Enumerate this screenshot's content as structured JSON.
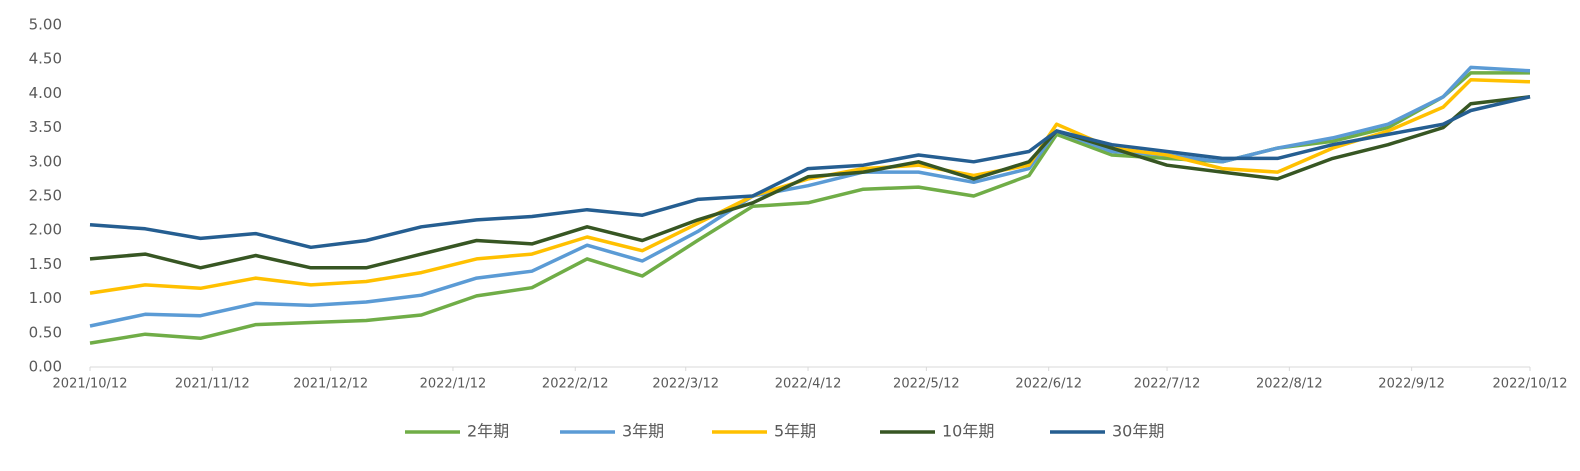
{
  "chart_data": {
    "type": "line",
    "x": [
      "2021/10/12",
      "2021/10/26",
      "2021/11/9",
      "2021/11/23",
      "2021/12/7",
      "2021/12/21",
      "2022/1/4",
      "2022/1/18",
      "2022/2/1",
      "2022/2/15",
      "2022/3/1",
      "2022/3/15",
      "2022/3/29",
      "2022/4/12",
      "2022/4/26",
      "2022/5/10",
      "2022/5/24",
      "2022/6/7",
      "2022/6/14",
      "2022/6/28",
      "2022/7/12",
      "2022/7/26",
      "2022/8/9",
      "2022/8/23",
      "2022/9/6",
      "2022/9/20",
      "2022/9/27",
      "2022/10/12"
    ],
    "series": [
      {
        "name": "2年期",
        "color": "#70ad47",
        "values": [
          0.35,
          0.48,
          0.42,
          0.62,
          0.65,
          0.68,
          0.76,
          1.04,
          1.16,
          1.58,
          1.33,
          1.85,
          2.35,
          2.4,
          2.6,
          2.63,
          2.5,
          2.8,
          3.4,
          3.1,
          3.05,
          3.0,
          3.2,
          3.3,
          3.5,
          3.95,
          4.3,
          4.3
        ]
      },
      {
        "name": "3年期",
        "color": "#5b9bd5",
        "values": [
          0.6,
          0.77,
          0.75,
          0.93,
          0.9,
          0.95,
          1.05,
          1.3,
          1.4,
          1.78,
          1.55,
          1.98,
          2.5,
          2.65,
          2.85,
          2.85,
          2.7,
          2.9,
          3.45,
          3.15,
          3.1,
          3.0,
          3.2,
          3.35,
          3.55,
          3.95,
          4.38,
          4.33
        ]
      },
      {
        "name": "5年期",
        "color": "#ffc000",
        "values": [
          1.08,
          1.2,
          1.15,
          1.3,
          1.2,
          1.25,
          1.38,
          1.58,
          1.65,
          1.9,
          1.7,
          2.1,
          2.5,
          2.75,
          2.9,
          2.95,
          2.8,
          2.95,
          3.55,
          3.2,
          3.1,
          2.9,
          2.85,
          3.2,
          3.45,
          3.8,
          4.2,
          4.17
        ]
      },
      {
        "name": "10年期",
        "color": "#375623",
        "values": [
          1.58,
          1.65,
          1.45,
          1.63,
          1.45,
          1.45,
          1.65,
          1.85,
          1.8,
          2.05,
          1.85,
          2.15,
          2.4,
          2.78,
          2.85,
          3.0,
          2.75,
          3.0,
          3.45,
          3.2,
          2.95,
          2.85,
          2.75,
          3.05,
          3.25,
          3.5,
          3.85,
          3.95
        ]
      },
      {
        "name": "30年期",
        "color": "#255e91",
        "values": [
          2.08,
          2.02,
          1.88,
          1.95,
          1.75,
          1.85,
          2.05,
          2.15,
          2.2,
          2.3,
          2.22,
          2.45,
          2.5,
          2.9,
          2.95,
          3.1,
          3.0,
          3.15,
          3.45,
          3.25,
          3.15,
          3.05,
          3.05,
          3.25,
          3.4,
          3.55,
          3.75,
          3.95
        ]
      }
    ],
    "xlim": [
      "2021/10/12",
      "2022/10/12"
    ],
    "xticks": [
      "2021/10/12",
      "2021/11/12",
      "2021/12/12",
      "2022/1/12",
      "2022/2/12",
      "2022/3/12",
      "2022/4/12",
      "2022/5/12",
      "2022/6/12",
      "2022/7/12",
      "2022/8/12",
      "2022/9/12",
      "2022/10/12"
    ],
    "ylim": [
      0,
      5
    ],
    "yticks": [
      {
        "value": 0,
        "label": "0.00"
      },
      {
        "value": 0.5,
        "label": "0.50"
      },
      {
        "value": 1,
        "label": "1.00"
      },
      {
        "value": 1.5,
        "label": "1.50"
      },
      {
        "value": 2,
        "label": "2.00"
      },
      {
        "value": 2.5,
        "label": "2.50"
      },
      {
        "value": 3,
        "label": "3.00"
      },
      {
        "value": 3.5,
        "label": "3.50"
      },
      {
        "value": 4,
        "label": "4.00"
      },
      {
        "value": 4.5,
        "label": "4.50"
      },
      {
        "value": 5,
        "label": "5.00"
      }
    ],
    "legend": "bottom"
  }
}
